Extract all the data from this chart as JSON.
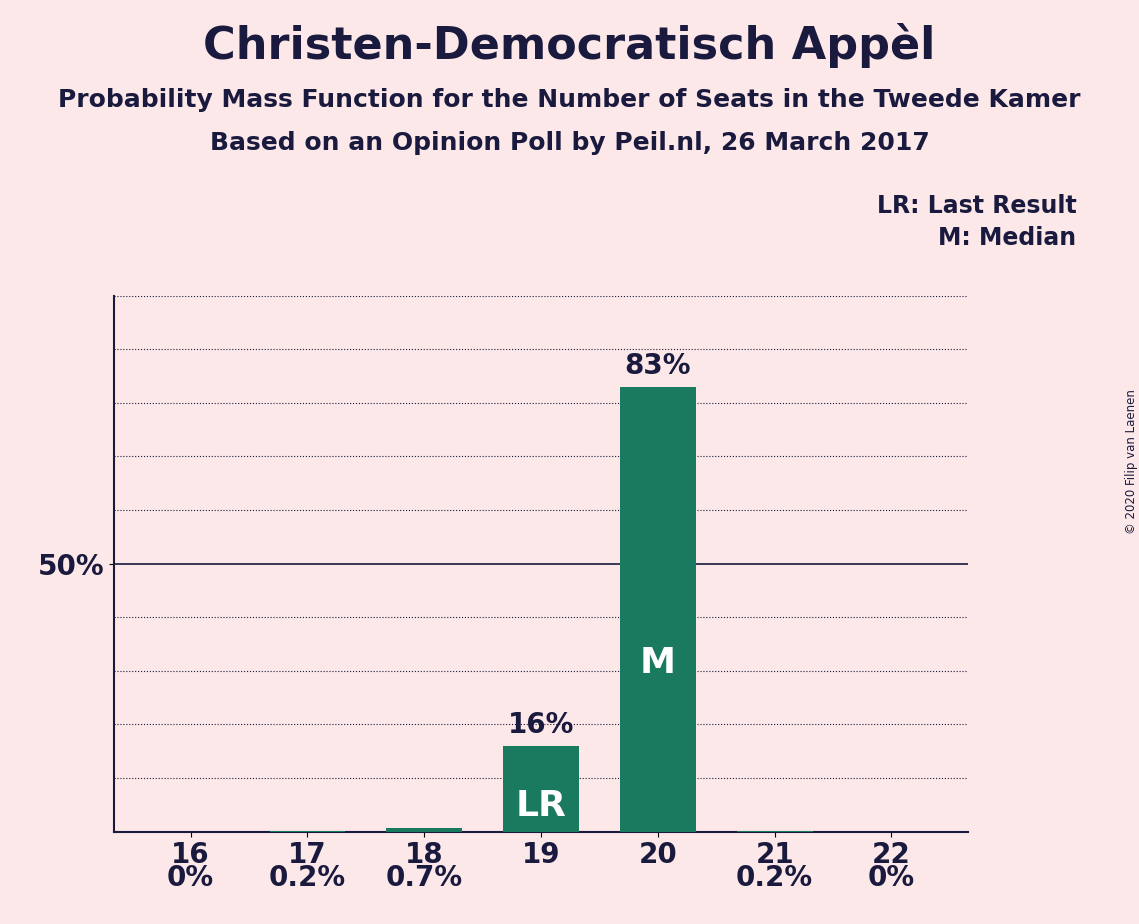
{
  "title": "Christen-Democratisch Appèl",
  "subtitle1": "Probability Mass Function for the Number of Seats in the Tweede Kamer",
  "subtitle2": "Based on an Opinion Poll by Peil.nl, 26 March 2017",
  "copyright": "© 2020 Filip van Laenen",
  "legend_lr": "LR: Last Result",
  "legend_m": "M: Median",
  "categories": [
    16,
    17,
    18,
    19,
    20,
    21,
    22
  ],
  "values": [
    0.0,
    0.2,
    0.7,
    16.0,
    83.0,
    0.2,
    0.0
  ],
  "bar_color": "#1a7a60",
  "bar_inner_labels": [
    "",
    "",
    "",
    "LR",
    "M",
    "",
    ""
  ],
  "bar_value_labels": [
    "0%",
    "0.2%",
    "0.7%",
    "16%",
    "83%",
    "0.2%",
    "0%"
  ],
  "lr_index": 3,
  "median_index": 4,
  "background_color": "#fce8e8",
  "text_color": "#1a1a3e",
  "ylim": [
    0,
    100
  ],
  "title_fontsize": 32,
  "subtitle_fontsize": 18,
  "axis_fontsize": 20,
  "label_fontsize": 20,
  "inner_label_fontsize": 26,
  "legend_fontsize": 17
}
